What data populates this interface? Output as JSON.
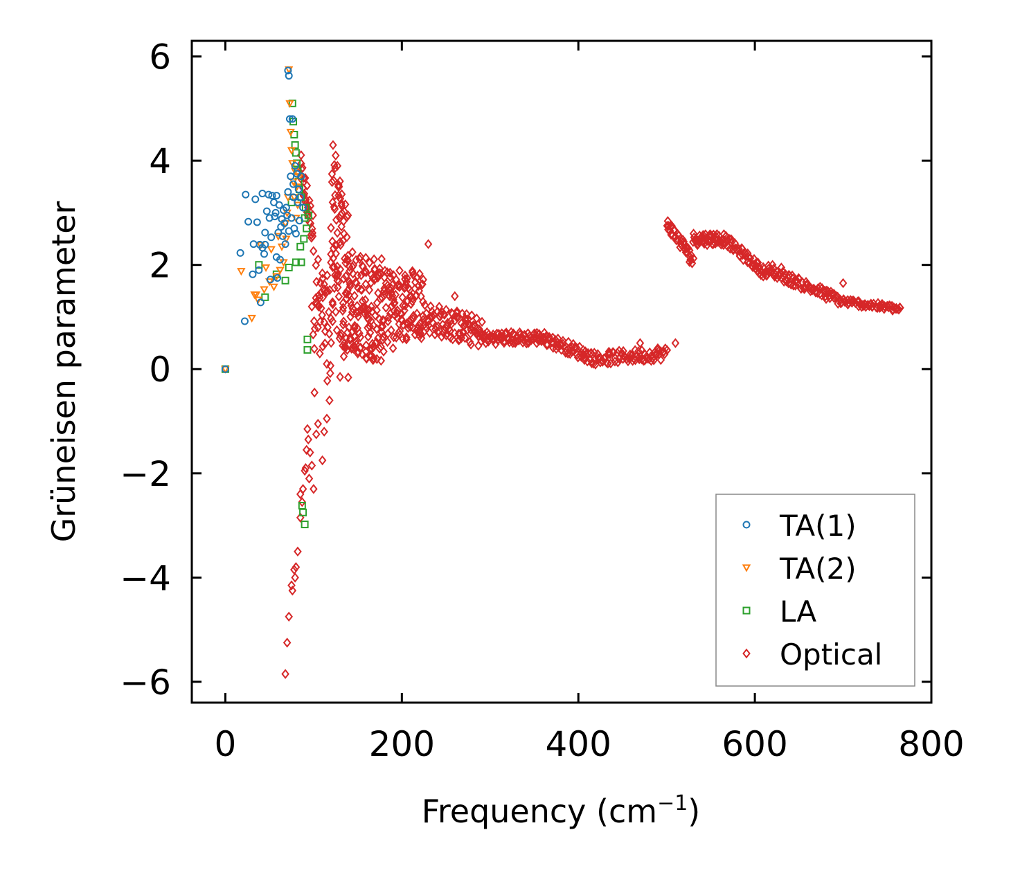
{
  "chart_data": {
    "type": "scatter",
    "title": "",
    "xlabel": "Frequency (cm",
    "xlabel_superscript": "−1",
    "xlabel_close": ")",
    "ylabel": "Grüneisen parameter",
    "xlim": [
      -38,
      800
    ],
    "ylim": [
      -6.4,
      6.3
    ],
    "xticks": [
      0,
      200,
      400,
      600,
      800
    ],
    "yticks": [
      -6,
      -4,
      -2,
      0,
      2,
      4,
      6
    ],
    "xtick_labels": [
      "0",
      "200",
      "400",
      "600",
      "800"
    ],
    "ytick_labels": [
      "−6",
      "−4",
      "−2",
      "0",
      "2",
      "4",
      "6"
    ],
    "grid": false,
    "legend_position": "lower-right",
    "series": [
      {
        "name": "TA(1)",
        "marker": "circle",
        "color": "#1f77b4",
        "points": [
          [
            0,
            0
          ],
          [
            22,
            0.92
          ],
          [
            23,
            3.35
          ],
          [
            26,
            2.83
          ],
          [
            17,
            2.23
          ],
          [
            31,
            1.82
          ],
          [
            32,
            2.4
          ],
          [
            34,
            3.26
          ],
          [
            36,
            2.82
          ],
          [
            38,
            1.9
          ],
          [
            39,
            2.39
          ],
          [
            40,
            1.28
          ],
          [
            42,
            3.37
          ],
          [
            42,
            2.33
          ],
          [
            44,
            2.21
          ],
          [
            45,
            2.62
          ],
          [
            45,
            2.39
          ],
          [
            47,
            3.03
          ],
          [
            49,
            3.35
          ],
          [
            50,
            2.9
          ],
          [
            51,
            1.72
          ],
          [
            52,
            2.53
          ],
          [
            53,
            3.33
          ],
          [
            55,
            3.2
          ],
          [
            56,
            2.93
          ],
          [
            57,
            3.0
          ],
          [
            58,
            3.33
          ],
          [
            58,
            2.15
          ],
          [
            59,
            1.75
          ],
          [
            60,
            2.62
          ],
          [
            61,
            3.15
          ],
          [
            62,
            2.1
          ],
          [
            63,
            2.73
          ],
          [
            64,
            2.88
          ],
          [
            65,
            2.55
          ],
          [
            66,
            3.05
          ],
          [
            67,
            2.8
          ],
          [
            68,
            2.4
          ],
          [
            69,
            3.1
          ],
          [
            70,
            2.95
          ],
          [
            71,
            3.4
          ],
          [
            71,
            5.73
          ],
          [
            72,
            5.63
          ],
          [
            72,
            2.65
          ],
          [
            73,
            4.8
          ],
          [
            74,
            3.7
          ],
          [
            75,
            2.9
          ],
          [
            76,
            4.8
          ],
          [
            77,
            3.3
          ],
          [
            77,
            3.55
          ],
          [
            78,
            2.7
          ],
          [
            79,
            3.9
          ],
          [
            80,
            2.6
          ],
          [
            81,
            3.75
          ],
          [
            82,
            3.2
          ],
          [
            83,
            3.45
          ],
          [
            84,
            2.85
          ],
          [
            85,
            3.3
          ],
          [
            86,
            3.7
          ],
          [
            88,
            3.1
          ]
        ]
      },
      {
        "name": "TA(2)",
        "marker": "triangle-down",
        "color": "#ff7f0e",
        "points": [
          [
            0,
            0
          ],
          [
            18,
            1.88
          ],
          [
            30,
            0.98
          ],
          [
            33,
            1.43
          ],
          [
            35,
            1.43
          ],
          [
            37,
            1.33
          ],
          [
            40,
            2.38
          ],
          [
            44,
            1.53
          ],
          [
            46,
            1.95
          ],
          [
            50,
            1.68
          ],
          [
            52,
            2.3
          ],
          [
            55,
            1.58
          ],
          [
            58,
            1.78
          ],
          [
            60,
            2.55
          ],
          [
            62,
            1.9
          ],
          [
            64,
            2.35
          ],
          [
            66,
            2.05
          ],
          [
            68,
            2.8
          ],
          [
            69,
            2.5
          ],
          [
            70,
            3.0
          ],
          [
            71,
            3.3
          ],
          [
            72,
            5.75
          ],
          [
            73,
            5.1
          ],
          [
            74,
            4.55
          ],
          [
            75,
            4.2
          ],
          [
            76,
            3.95
          ],
          [
            77,
            3.6
          ],
          [
            78,
            3.3
          ],
          [
            79,
            3.8
          ],
          [
            80,
            2.9
          ],
          [
            81,
            3.5
          ],
          [
            82,
            3.15
          ],
          [
            84,
            3.7
          ]
        ]
      },
      {
        "name": "LA",
        "marker": "square",
        "color": "#2ca02c",
        "points": [
          [
            0,
            0
          ],
          [
            38,
            2.0
          ],
          [
            45,
            1.38
          ],
          [
            58,
            1.82
          ],
          [
            68,
            1.7
          ],
          [
            72,
            1.95
          ],
          [
            75,
            3.2
          ],
          [
            76,
            5.1
          ],
          [
            77,
            4.75
          ],
          [
            78,
            4.5
          ],
          [
            79,
            4.3
          ],
          [
            80,
            4.15
          ],
          [
            80,
            2.05
          ],
          [
            81,
            3.95
          ],
          [
            82,
            3.8
          ],
          [
            83,
            3.6
          ],
          [
            84,
            3.45
          ],
          [
            85,
            2.35
          ],
          [
            86,
            3.3
          ],
          [
            86,
            2.05
          ],
          [
            87,
            -2.62
          ],
          [
            88,
            -2.75
          ],
          [
            89,
            2.5
          ],
          [
            90,
            2.9
          ],
          [
            90,
            -2.98
          ],
          [
            91,
            3.1
          ],
          [
            92,
            2.7
          ],
          [
            93,
            0.57
          ],
          [
            93,
            0.37
          ],
          [
            94,
            2.95
          ]
        ]
      },
      {
        "name": "Optical",
        "marker": "diamond",
        "color": "#d62728",
        "points": []
      }
    ],
    "optical_bands": [
      {
        "x0": 85,
        "x1": 100,
        "center": [
          [
            85,
            3.8
          ],
          [
            100,
            2.6
          ]
        ],
        "spread": 0.35,
        "n": 30
      },
      {
        "x0": 100,
        "x1": 120,
        "center": [
          [
            100,
            1.4
          ],
          [
            120,
            0.6
          ]
        ],
        "spread": 1.0,
        "n": 40
      },
      {
        "x0": 120,
        "x1": 140,
        "center": [
          [
            120,
            2.6
          ],
          [
            140,
            1.4
          ]
        ],
        "spread": 1.6,
        "n": 90
      },
      {
        "x0": 140,
        "x1": 180,
        "center": [
          [
            140,
            1.3
          ],
          [
            180,
            1.1
          ]
        ],
        "spread": 1.0,
        "n": 130
      },
      {
        "x0": 180,
        "x1": 225,
        "center": [
          [
            180,
            1.2
          ],
          [
            225,
            1.3
          ]
        ],
        "spread": 0.7,
        "n": 110
      },
      {
        "x0": 225,
        "x1": 290,
        "center": [
          [
            225,
            1.0
          ],
          [
            290,
            0.7
          ]
        ],
        "spread": 0.3,
        "n": 90
      },
      {
        "x0": 290,
        "x1": 360,
        "center": [
          [
            290,
            0.6
          ],
          [
            360,
            0.6
          ]
        ],
        "spread": 0.12,
        "n": 80
      },
      {
        "x0": 360,
        "x1": 420,
        "center": [
          [
            360,
            0.6
          ],
          [
            420,
            0.2
          ]
        ],
        "spread": 0.12,
        "n": 60
      },
      {
        "x0": 420,
        "x1": 500,
        "center": [
          [
            420,
            0.2
          ],
          [
            500,
            0.3
          ]
        ],
        "spread": 0.12,
        "n": 70
      },
      {
        "x0": 500,
        "x1": 530,
        "center": [
          [
            500,
            2.8
          ],
          [
            530,
            2.1
          ]
        ],
        "spread": 0.12,
        "n": 40
      },
      {
        "x0": 530,
        "x1": 565,
        "center": [
          [
            530,
            2.5
          ],
          [
            565,
            2.5
          ]
        ],
        "spread": 0.12,
        "n": 45
      },
      {
        "x0": 565,
        "x1": 615,
        "center": [
          [
            565,
            2.5
          ],
          [
            615,
            1.8
          ]
        ],
        "spread": 0.1,
        "n": 55
      },
      {
        "x0": 615,
        "x1": 700,
        "center": [
          [
            615,
            1.9
          ],
          [
            700,
            1.3
          ]
        ],
        "spread": 0.1,
        "n": 80
      },
      {
        "x0": 700,
        "x1": 765,
        "center": [
          [
            700,
            1.3
          ],
          [
            765,
            1.15
          ]
        ],
        "spread": 0.06,
        "n": 60
      }
    ],
    "optical_scattered": [
      [
        68,
        -5.85
      ],
      [
        70,
        -5.25
      ],
      [
        72,
        -4.75
      ],
      [
        75,
        -4.15
      ],
      [
        76,
        -4.25
      ],
      [
        78,
        -3.85
      ],
      [
        79,
        -4.0
      ],
      [
        80,
        -3.8
      ],
      [
        82,
        -3.5
      ],
      [
        85,
        -2.85
      ],
      [
        85,
        -2.4
      ],
      [
        87,
        -2.55
      ],
      [
        88,
        -2.3
      ],
      [
        90,
        -1.95
      ],
      [
        91,
        -1.9
      ],
      [
        92,
        -1.55
      ],
      [
        93,
        -1.15
      ],
      [
        94,
        -1.35
      ],
      [
        95,
        -2.1
      ],
      [
        96,
        -1.6
      ],
      [
        98,
        -1.85
      ],
      [
        100,
        -2.3
      ],
      [
        101,
        -0.45
      ],
      [
        103,
        -1.25
      ],
      [
        105,
        -1.05
      ],
      [
        106,
        1.2
      ],
      [
        110,
        -1.75
      ],
      [
        112,
        -1.2
      ],
      [
        115,
        -0.95
      ],
      [
        118,
        -0.6
      ],
      [
        98,
        1.2
      ],
      [
        107,
        0.3
      ],
      [
        112,
        0.9
      ],
      [
        115,
        0.1
      ],
      [
        122,
        4.3
      ],
      [
        125,
        4.1
      ],
      [
        127,
        3.9
      ],
      [
        130,
        -0.15
      ],
      [
        135,
        0.5
      ],
      [
        140,
        0.8
      ],
      [
        150,
        0.3
      ],
      [
        160,
        0.2
      ],
      [
        170,
        0.5
      ],
      [
        190,
        0.4
      ],
      [
        230,
        2.4
      ],
      [
        260,
        1.4
      ],
      [
        470,
        0.5
      ],
      [
        490,
        0.4
      ],
      [
        510,
        0.5
      ],
      [
        620,
        2.0
      ],
      [
        630,
        1.95
      ],
      [
        700,
        1.65
      ]
    ]
  }
}
